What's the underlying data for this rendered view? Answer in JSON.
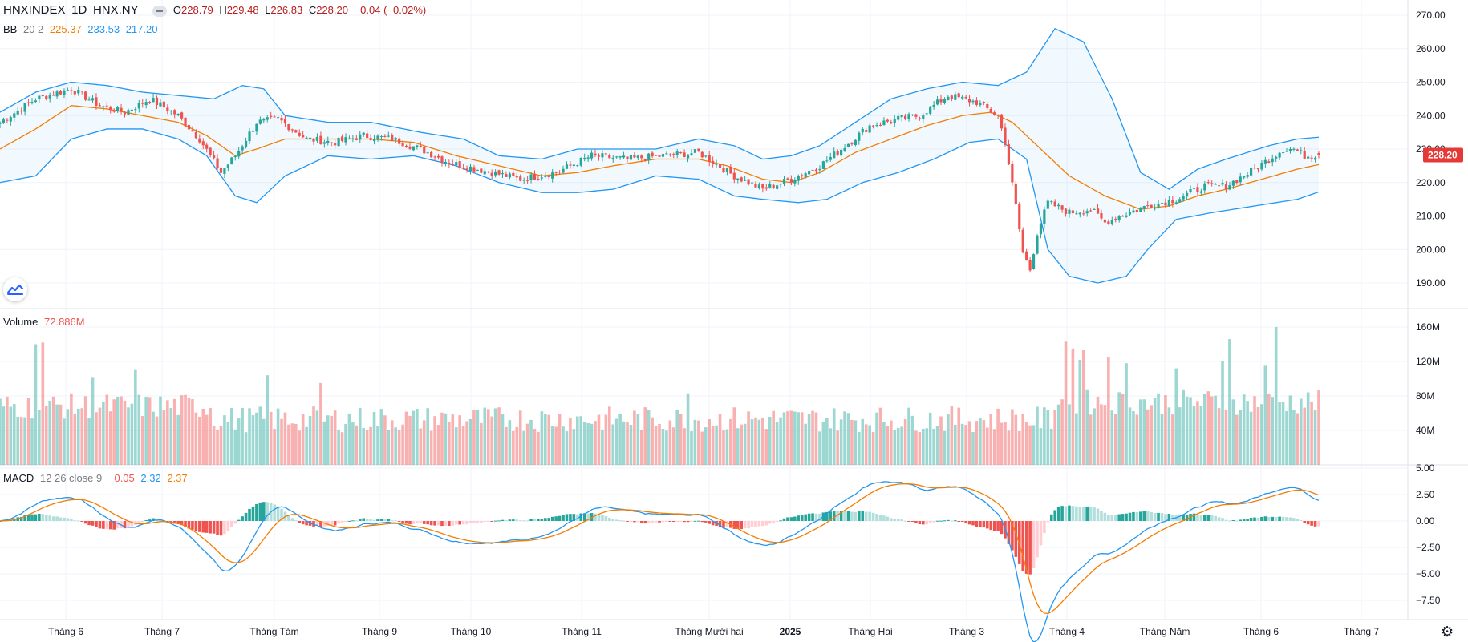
{
  "header": {
    "symbol": "HNXINDEX",
    "interval": "1D",
    "exchange": "HNX.NY",
    "o_label": "O",
    "o_value": "228.79",
    "h_label": "H",
    "h_value": "229.48",
    "l_label": "L",
    "l_value": "226.83",
    "c_label": "C",
    "c_value": "228.20",
    "change": "−0.04 (−0.02%)"
  },
  "bb_legend": {
    "name": "BB",
    "params": "20 2",
    "basis": "225.37",
    "upper": "233.53",
    "lower": "217.20"
  },
  "volume_legend": {
    "name": "Volume",
    "value": "72.886M"
  },
  "macd_legend": {
    "name": "MACD",
    "params": "12 26 close 9",
    "hist": "−0.05",
    "macd": "2.32",
    "signal": "2.37"
  },
  "colors": {
    "up": "#26a69a",
    "down": "#ef5350",
    "basis": "#f57c00",
    "band": "#2196f3",
    "price_line": "#e53935"
  },
  "chart_data": [
    {
      "type": "candlestick",
      "title": "HNXINDEX 1D HNX.NY",
      "y_axis_ticks": [
        "190.00",
        "200.00",
        "210.00",
        "220.00",
        "230.00",
        "240.00",
        "250.00",
        "260.00",
        "270.00"
      ],
      "ylim": [
        186,
        272
      ],
      "last_price_label": "228.20",
      "x_tick_labels": [
        "Tháng 6",
        "Tháng 7",
        "Tháng Tám",
        "Tháng 9",
        "Tháng 10",
        "Tháng 11",
        "Tháng Mười hai",
        "2025",
        "Tháng Hai",
        "Tháng 3",
        "Tháng 4",
        "Tháng Năm",
        "Tháng 6",
        "Tháng 7"
      ],
      "close_anchors": [
        [
          0,
          238
        ],
        [
          10,
          245
        ],
        [
          20,
          248
        ],
        [
          28,
          243
        ],
        [
          35,
          241
        ],
        [
          42,
          245
        ],
        [
          50,
          240
        ],
        [
          56,
          233
        ],
        [
          62,
          223
        ],
        [
          66,
          228
        ],
        [
          72,
          238
        ],
        [
          78,
          239
        ],
        [
          86,
          233
        ],
        [
          94,
          232
        ],
        [
          102,
          234
        ],
        [
          110,
          233
        ],
        [
          118,
          230
        ],
        [
          126,
          226
        ],
        [
          134,
          224
        ],
        [
          146,
          221
        ],
        [
          156,
          223
        ],
        [
          166,
          228
        ],
        [
          176,
          227
        ],
        [
          186,
          228
        ],
        [
          196,
          229
        ],
        [
          206,
          222
        ],
        [
          214,
          218
        ],
        [
          222,
          221
        ],
        [
          230,
          225
        ],
        [
          236,
          230
        ],
        [
          244,
          237
        ],
        [
          252,
          239
        ],
        [
          258,
          240
        ],
        [
          266,
          246
        ],
        [
          274,
          244
        ],
        [
          280,
          240
        ],
        [
          282,
          232
        ],
        [
          285,
          213
        ],
        [
          287,
          199
        ],
        [
          289,
          194
        ],
        [
          291,
          205
        ],
        [
          294,
          214
        ],
        [
          300,
          211
        ],
        [
          306,
          212
        ],
        [
          310,
          208
        ],
        [
          314,
          210
        ],
        [
          322,
          213
        ],
        [
          330,
          215
        ],
        [
          338,
          219
        ],
        [
          344,
          219
        ],
        [
          352,
          224
        ],
        [
          360,
          230
        ],
        [
          363,
          230
        ],
        [
          366,
          228
        ],
        [
          370,
          228.2
        ]
      ],
      "basis_anchors": [
        [
          0,
          230
        ],
        [
          10,
          236
        ],
        [
          20,
          243
        ],
        [
          30,
          242
        ],
        [
          40,
          240
        ],
        [
          50,
          238
        ],
        [
          58,
          234
        ],
        [
          66,
          228
        ],
        [
          72,
          230
        ],
        [
          80,
          233
        ],
        [
          92,
          233
        ],
        [
          104,
          233
        ],
        [
          116,
          232
        ],
        [
          128,
          228
        ],
        [
          140,
          225
        ],
        [
          152,
          222
        ],
        [
          162,
          223
        ],
        [
          172,
          225
        ],
        [
          184,
          227
        ],
        [
          196,
          227
        ],
        [
          204,
          225
        ],
        [
          214,
          221
        ],
        [
          222,
          220
        ],
        [
          230,
          223
        ],
        [
          240,
          229
        ],
        [
          250,
          233
        ],
        [
          260,
          237
        ],
        [
          270,
          240
        ],
        [
          278,
          241
        ],
        [
          284,
          238
        ],
        [
          290,
          232
        ],
        [
          300,
          222
        ],
        [
          310,
          216
        ],
        [
          320,
          212
        ],
        [
          328,
          213
        ],
        [
          336,
          216
        ],
        [
          344,
          218
        ],
        [
          354,
          221
        ],
        [
          364,
          224
        ],
        [
          370,
          225.37
        ]
      ],
      "upper_anchors": [
        [
          0,
          241
        ],
        [
          10,
          247
        ],
        [
          20,
          250
        ],
        [
          30,
          249
        ],
        [
          40,
          247
        ],
        [
          50,
          246
        ],
        [
          60,
          245
        ],
        [
          68,
          249
        ],
        [
          74,
          248
        ],
        [
          80,
          240
        ],
        [
          92,
          238
        ],
        [
          104,
          238
        ],
        [
          118,
          235
        ],
        [
          130,
          233
        ],
        [
          140,
          228
        ],
        [
          152,
          227
        ],
        [
          162,
          230
        ],
        [
          172,
          230
        ],
        [
          184,
          230
        ],
        [
          196,
          233
        ],
        [
          206,
          231
        ],
        [
          214,
          227
        ],
        [
          222,
          228
        ],
        [
          230,
          231
        ],
        [
          240,
          238
        ],
        [
          250,
          245
        ],
        [
          260,
          248
        ],
        [
          270,
          250
        ],
        [
          280,
          249
        ],
        [
          288,
          253
        ],
        [
          296,
          266
        ],
        [
          304,
          262
        ],
        [
          312,
          245
        ],
        [
          320,
          223
        ],
        [
          328,
          218
        ],
        [
          336,
          224
        ],
        [
          344,
          227
        ],
        [
          356,
          231
        ],
        [
          364,
          233
        ],
        [
          370,
          233.53
        ]
      ],
      "lower_anchors": [
        [
          0,
          220
        ],
        [
          10,
          222
        ],
        [
          20,
          233
        ],
        [
          30,
          236
        ],
        [
          40,
          236
        ],
        [
          50,
          233
        ],
        [
          58,
          228
        ],
        [
          66,
          216
        ],
        [
          72,
          214
        ],
        [
          80,
          222
        ],
        [
          92,
          228
        ],
        [
          104,
          227
        ],
        [
          116,
          228
        ],
        [
          128,
          225
        ],
        [
          140,
          220
        ],
        [
          152,
          217
        ],
        [
          162,
          217
        ],
        [
          172,
          218
        ],
        [
          184,
          222
        ],
        [
          196,
          221
        ],
        [
          206,
          216
        ],
        [
          214,
          215
        ],
        [
          224,
          214
        ],
        [
          232,
          215
        ],
        [
          242,
          220
        ],
        [
          252,
          223
        ],
        [
          262,
          227
        ],
        [
          272,
          232
        ],
        [
          280,
          233
        ],
        [
          288,
          227
        ],
        [
          294,
          200
        ],
        [
          300,
          192
        ],
        [
          308,
          190
        ],
        [
          316,
          192
        ],
        [
          322,
          200
        ],
        [
          330,
          209
        ],
        [
          340,
          211
        ],
        [
          352,
          213
        ],
        [
          364,
          215
        ],
        [
          370,
          217.2
        ]
      ]
    },
    {
      "type": "bar",
      "title": "Volume",
      "y_axis_ticks": [
        "40M",
        "80M",
        "120M",
        "160M"
      ],
      "ylim": [
        0,
        168
      ],
      "spikes": [
        [
          10,
          140
        ],
        [
          12,
          142
        ],
        [
          26,
          102
        ],
        [
          38,
          110
        ],
        [
          75,
          104
        ],
        [
          90,
          95
        ],
        [
          193,
          83
        ],
        [
          299,
          143
        ],
        [
          301,
          135
        ],
        [
          303,
          122
        ],
        [
          304,
          133
        ],
        [
          311,
          125
        ],
        [
          316,
          118
        ],
        [
          330,
          112
        ],
        [
          343,
          120
        ],
        [
          345,
          146
        ],
        [
          355,
          115
        ],
        [
          358,
          160
        ]
      ]
    },
    {
      "type": "bar",
      "title": "MACD 12 26 close 9",
      "y_axis_ticks": [
        "5.00",
        "2.50",
        "0.00",
        "−2.50",
        "−5.00",
        "−7.50"
      ],
      "ylim": [
        -9.5,
        5.5
      ]
    }
  ]
}
